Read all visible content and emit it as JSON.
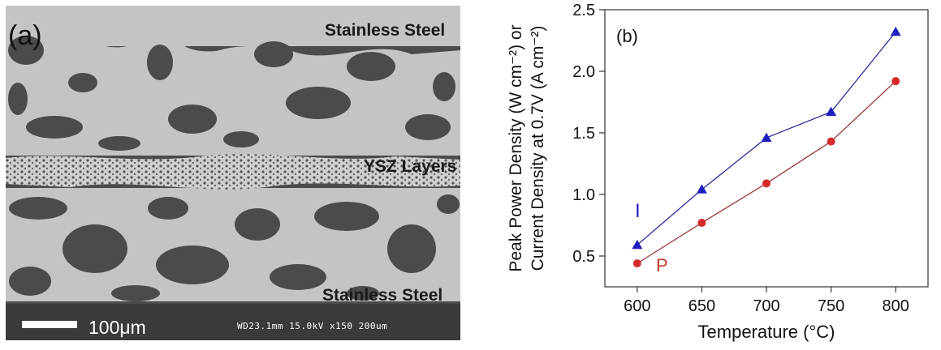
{
  "panel_a": {
    "label": "(a)",
    "top_label": "Stainless Steel",
    "middle_label": "YSZ Layers",
    "bottom_label": "Stainless Steel",
    "scale_bar_label": "100μm",
    "sem_info": "WD23.1mm 15.0kV x150  200um"
  },
  "chart_data": {
    "type": "line",
    "panel_label": "(b)",
    "x": [
      600,
      650,
      700,
      750,
      800
    ],
    "xlabel": "Temperature (°C)",
    "ylabel_line1": "Peak Power Density (W cm⁻²) or",
    "ylabel_line2": "Current Density at 0.7V (A cm⁻²)",
    "xlim": [
      575,
      825
    ],
    "ylim": [
      0.25,
      2.5
    ],
    "xticks": [
      "600",
      "650",
      "700",
      "750",
      "800"
    ],
    "yticks": [
      "0.5",
      "1.0",
      "1.5",
      "2.0",
      "2.5"
    ],
    "series": [
      {
        "name": "I",
        "marker": "triangle",
        "color": "#1f1fbf",
        "line_color": "#2b2b9a",
        "values": [
          0.59,
          1.04,
          1.46,
          1.67,
          2.32
        ]
      },
      {
        "name": "P",
        "marker": "circle",
        "color": "#d42a2a",
        "line_color": "#9a3a3a",
        "values": [
          0.44,
          0.77,
          1.09,
          1.43,
          1.92
        ]
      }
    ]
  }
}
